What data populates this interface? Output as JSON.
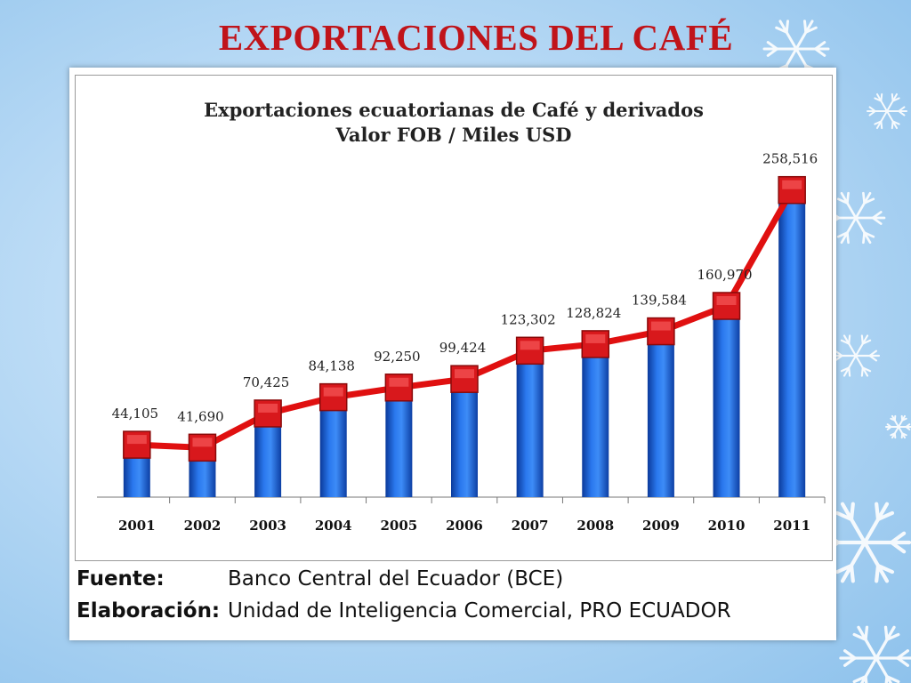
{
  "slide": {
    "title": "EXPORTACIONES  DEL CAFÉ"
  },
  "colors": {
    "title": "#c0141a",
    "bar": "#1f5fd1",
    "line": "#e01010",
    "marker": "#d8181c"
  },
  "chart_data": {
    "type": "bar",
    "title": "Exportaciones ecuatorianas de Café y derivados",
    "subtitle": "Valor FOB / Miles USD",
    "categories": [
      "2001",
      "2002",
      "2003",
      "2004",
      "2005",
      "2006",
      "2007",
      "2008",
      "2009",
      "2010",
      "2011"
    ],
    "series": [
      {
        "values": [
          44105,
          41690,
          70425,
          84138,
          92250,
          99424,
          123302,
          128824,
          139584,
          160970,
          258516
        ],
        "labels": [
          "44,105",
          "41,690",
          "70,425",
          "84,138",
          "92,250",
          "99,424",
          "123,302",
          "128,824",
          "139,584",
          "160,970",
          "258,516"
        ]
      }
    ],
    "overlay": "line-with-square-markers",
    "ylim": [
      0,
      280000
    ],
    "grid": false,
    "legend": "none"
  },
  "source": {
    "fuente_label": "Fuente:",
    "fuente_value": "Banco Central del Ecuador (BCE)",
    "elab_label": "Elaboración:",
    "elab_value": "Unidad de Inteligencia Comercial, PRO ECUADOR"
  }
}
